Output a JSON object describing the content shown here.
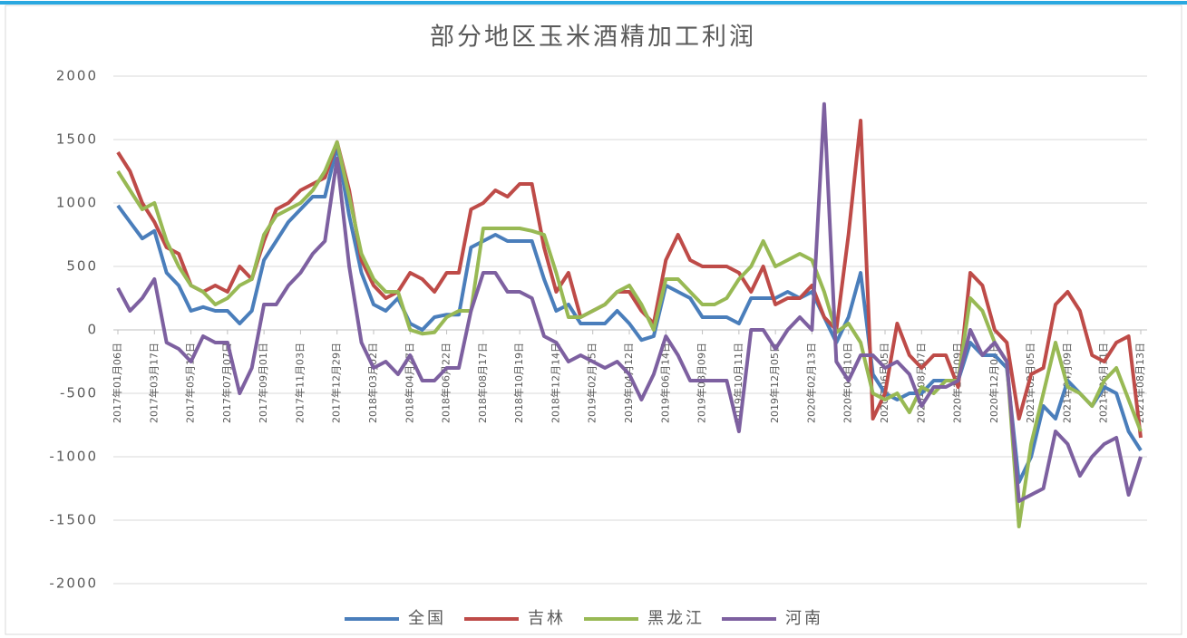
{
  "chart_data": {
    "type": "line",
    "title": "部分地区玉米酒精加工利润",
    "categories": [
      "2017年01月06日",
      null,
      null,
      "2017年03月17日",
      null,
      null,
      "2017年05月12日",
      null,
      null,
      "2017年07月07日",
      null,
      null,
      "2017年09月01日",
      null,
      null,
      "2017年11月03日",
      null,
      null,
      "2017年12月29日",
      null,
      null,
      "2018年03月02日",
      null,
      null,
      "2018年04月27日",
      null,
      null,
      "2018年06月22日",
      null,
      null,
      "2018年08月17日",
      null,
      null,
      "2018年10月19日",
      null,
      null,
      "2018年12月14日",
      null,
      null,
      "2019年02月15日",
      null,
      null,
      "2019年04月12日",
      null,
      null,
      "2019年06月14日",
      null,
      null,
      "2019年08月09日",
      null,
      null,
      "2019年10月11日",
      null,
      null,
      "2019年12月05日",
      null,
      null,
      "2020年02月13日",
      null,
      null,
      "2020年04月10日",
      null,
      null,
      "2020年06月05日",
      null,
      null,
      "2020年08月07日",
      null,
      null,
      "2020年10月09日",
      null,
      null,
      "2020年12月04日",
      null,
      null,
      "2021年02月05日",
      null,
      null,
      "2021年04月09日",
      null,
      null,
      "2021年06月11日",
      null,
      null,
      "2021年08月13日"
    ],
    "series": [
      {
        "name": "全国",
        "color": "#4a7ebb",
        "values": [
          980,
          850,
          720,
          780,
          450,
          350,
          150,
          180,
          150,
          150,
          50,
          150,
          550,
          700,
          850,
          950,
          1050,
          1050,
          1450,
          900,
          450,
          200,
          150,
          250,
          50,
          0,
          100,
          120,
          120,
          650,
          700,
          750,
          700,
          700,
          700,
          400,
          150,
          200,
          50,
          50,
          50,
          150,
          50,
          -80,
          -50,
          350,
          300,
          250,
          100,
          100,
          100,
          50,
          250,
          250,
          250,
          300,
          250,
          300,
          100,
          -100,
          100,
          450,
          -350,
          -500,
          -550,
          -500,
          -500,
          -400,
          -400,
          -400,
          -100,
          -200,
          -200,
          -300,
          -1200,
          -1000,
          -600,
          -700,
          -400,
          -500,
          -600,
          -450,
          -500,
          -800,
          -950
        ]
      },
      {
        "name": "吉林",
        "color": "#be4b48",
        "values": [
          1400,
          1250,
          1000,
          850,
          650,
          600,
          350,
          300,
          350,
          300,
          500,
          400,
          700,
          950,
          1000,
          1100,
          1150,
          1200,
          1480,
          1100,
          550,
          350,
          250,
          300,
          450,
          400,
          300,
          450,
          450,
          950,
          1000,
          1100,
          1050,
          1150,
          1150,
          650,
          300,
          450,
          100,
          150,
          200,
          300,
          300,
          150,
          50,
          550,
          750,
          550,
          500,
          500,
          500,
          450,
          300,
          500,
          200,
          250,
          250,
          350,
          100,
          0,
          750,
          1650,
          -700,
          -500,
          50,
          -200,
          -300,
          -200,
          -200,
          -450,
          450,
          350,
          0,
          -100,
          -700,
          -350,
          -300,
          200,
          300,
          150,
          -200,
          -250,
          -100,
          -50,
          -850
        ]
      },
      {
        "name": "黑龙江",
        "color": "#98b954",
        "values": [
          1250,
          1100,
          950,
          1000,
          700,
          500,
          350,
          300,
          200,
          250,
          350,
          400,
          750,
          900,
          950,
          1000,
          1100,
          1250,
          1480,
          1050,
          600,
          400,
          300,
          300,
          0,
          -30,
          -20,
          100,
          150,
          150,
          800,
          800,
          800,
          800,
          780,
          750,
          450,
          100,
          100,
          150,
          200,
          300,
          350,
          200,
          0,
          400,
          400,
          300,
          200,
          200,
          250,
          400,
          500,
          700,
          500,
          550,
          600,
          550,
          300,
          -20,
          50,
          -100,
          -500,
          -550,
          -500,
          -650,
          -450,
          -500,
          -400,
          -400,
          250,
          150,
          -100,
          -250,
          -1550,
          -900,
          -500,
          -100,
          -450,
          -500,
          -600,
          -400,
          -300,
          -550,
          -800
        ]
      },
      {
        "name": "河南",
        "color": "#7d60a0",
        "values": [
          330,
          150,
          250,
          400,
          -100,
          -150,
          -250,
          -50,
          -100,
          -100,
          -500,
          -300,
          200,
          200,
          350,
          450,
          600,
          700,
          1350,
          500,
          -100,
          -300,
          -250,
          -350,
          -200,
          -400,
          -400,
          -300,
          -300,
          150,
          450,
          450,
          300,
          300,
          250,
          -50,
          -100,
          -250,
          -200,
          -250,
          -300,
          -250,
          -350,
          -550,
          -350,
          -50,
          -200,
          -400,
          -400,
          -400,
          -400,
          -800,
          0,
          0,
          -150,
          0,
          100,
          0,
          1780,
          -250,
          -400,
          -200,
          -200,
          -300,
          -250,
          -350,
          -600,
          -450,
          -450,
          -400,
          0,
          -200,
          -100,
          -250,
          -1350,
          -1300,
          -1250,
          -800,
          -900,
          -1150,
          -1000,
          -900,
          -850,
          -1300,
          -1000
        ]
      }
    ],
    "ylim": [
      -2000,
      2000
    ],
    "yticks": [
      -2000,
      -1500,
      -1000,
      -500,
      0,
      500,
      1000,
      1500,
      2000
    ],
    "grid": true,
    "legend": "bottom"
  }
}
